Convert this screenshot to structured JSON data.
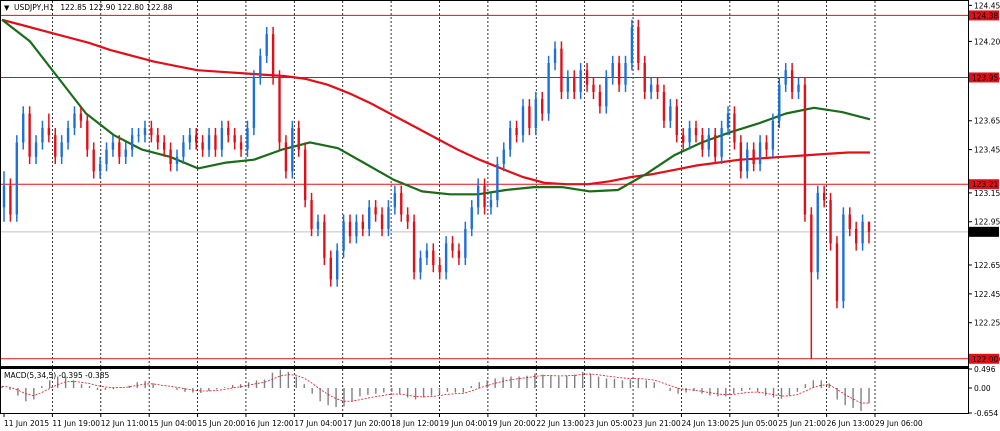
{
  "header": {
    "symbol": "USDJPY,H1",
    "ohlc": "122.85 122.90 122.80 122.88"
  },
  "macd_header": {
    "text": "MACD(5,34,5) -0.395 -0.385"
  },
  "colors": {
    "background": "#ffffff",
    "bull": "#1e6fd9",
    "bear": "#e0101a",
    "ma_red": "#e0101a",
    "ma_green": "#1a6b1a",
    "hline": "#e0101a",
    "hist": "#808080",
    "signal": "#e0101a",
    "grid": "#000000"
  },
  "price_labels": {
    "current": "122.88",
    "levels": [
      "124.38",
      "123.95",
      "123.21",
      "122.00"
    ]
  },
  "chart_data": [
    {
      "type": "candlestick",
      "title": "USDJPY,H1",
      "x_ticks": [
        "11 Jun 2015",
        "11 Jun 19:00",
        "12 Jun 11:00",
        "15 Jun 04:00",
        "15 Jun 20:00",
        "16 Jun 12:00",
        "17 Jun 04:00",
        "17 Jun 20:00",
        "18 Jun 12:00",
        "19 Jun 04:00",
        "19 Jun 20:00",
        "22 Jun 13:00",
        "23 Jun 05:00",
        "23 Jun 21:00",
        "24 Jun 13:00",
        "25 Jun 05:00",
        "25 Jun 21:00",
        "26 Jun 13:00",
        "29 Jun 06:00"
      ],
      "y_ticks": [
        "124.45",
        "124.20",
        "123.95",
        "123.65",
        "123.45",
        "123.15",
        "122.95",
        "122.65",
        "122.45",
        "122.25",
        "122.00"
      ],
      "ylim": [
        121.95,
        124.48
      ],
      "horizontal_lines": [
        124.38,
        123.95,
        123.21,
        122.0
      ],
      "current_price": 122.88,
      "ohlc": {
        "open": [
          123.05,
          123.2,
          123.0,
          123.5,
          123.7,
          123.4,
          123.5,
          123.6,
          123.55,
          123.4,
          123.5,
          123.6,
          123.7,
          123.65,
          123.45,
          123.3,
          123.35,
          123.45,
          123.5,
          123.4,
          123.45,
          123.55,
          123.55,
          123.6,
          123.55,
          123.5,
          123.45,
          123.35,
          123.4,
          123.5,
          123.55,
          123.5,
          123.45,
          123.55,
          123.45,
          123.6,
          123.55,
          123.5,
          123.45,
          123.6,
          123.95,
          124.1,
          124.25,
          123.95,
          123.5,
          123.3,
          123.6,
          123.45,
          123.1,
          122.9,
          122.95,
          122.7,
          122.55,
          122.75,
          122.95,
          122.85,
          122.95,
          122.9,
          123.05,
          123.0,
          122.9,
          123.05,
          123.15,
          123.0,
          122.95,
          122.6,
          122.7,
          122.75,
          122.65,
          122.6,
          122.8,
          122.75,
          122.7,
          122.9,
          123.05,
          123.2,
          123.05,
          123.1,
          123.35,
          123.45,
          123.6,
          123.55,
          123.75,
          123.6,
          123.8,
          123.7,
          124.05,
          124.15,
          123.85,
          123.95,
          123.85,
          124.0,
          123.9,
          123.85,
          123.75,
          123.95,
          124.05,
          123.9,
          124.05,
          124.3,
          124.05,
          123.85,
          123.9,
          123.85,
          123.65,
          123.75,
          123.55,
          123.5,
          123.6,
          123.55,
          123.45,
          123.55,
          123.4,
          123.6,
          123.7,
          123.5,
          123.3,
          123.45,
          123.35,
          123.5,
          123.45,
          123.65,
          123.9,
          124.0,
          123.85,
          123.9,
          123.0,
          122.6,
          123.15,
          123.1,
          122.8,
          122.4,
          123.0,
          122.9,
          122.8,
          122.95
        ],
        "close": [
          123.2,
          123.0,
          123.5,
          123.7,
          123.4,
          123.5,
          123.6,
          123.55,
          123.4,
          123.5,
          123.6,
          123.7,
          123.65,
          123.45,
          123.3,
          123.35,
          123.45,
          123.5,
          123.4,
          123.45,
          123.55,
          123.55,
          123.6,
          123.55,
          123.5,
          123.45,
          123.35,
          123.4,
          123.5,
          123.55,
          123.5,
          123.45,
          123.55,
          123.45,
          123.6,
          123.55,
          123.5,
          123.45,
          123.6,
          123.95,
          124.1,
          124.25,
          123.95,
          123.5,
          123.3,
          123.6,
          123.45,
          123.1,
          122.9,
          122.95,
          122.7,
          122.55,
          122.75,
          122.95,
          122.85,
          122.95,
          122.9,
          123.05,
          123.0,
          122.9,
          123.05,
          123.15,
          123.0,
          122.95,
          122.6,
          122.7,
          122.75,
          122.65,
          122.6,
          122.8,
          122.75,
          122.7,
          122.9,
          123.05,
          123.2,
          123.05,
          123.1,
          123.35,
          123.45,
          123.6,
          123.55,
          123.75,
          123.6,
          123.8,
          123.7,
          124.05,
          124.15,
          123.85,
          123.95,
          123.85,
          124.0,
          123.9,
          123.85,
          123.75,
          123.95,
          124.05,
          123.9,
          124.05,
          124.3,
          124.05,
          123.85,
          123.9,
          123.85,
          123.65,
          123.75,
          123.55,
          123.5,
          123.6,
          123.55,
          123.45,
          123.55,
          123.4,
          123.6,
          123.7,
          123.5,
          123.3,
          123.45,
          123.35,
          123.5,
          123.45,
          123.65,
          123.9,
          124.0,
          123.85,
          123.9,
          123.0,
          122.6,
          123.15,
          123.1,
          122.8,
          122.4,
          123.0,
          122.9,
          122.8,
          122.95,
          122.88
        ],
        "high": [
          123.3,
          123.25,
          123.55,
          123.75,
          123.75,
          123.55,
          123.65,
          123.7,
          123.6,
          123.55,
          123.65,
          123.75,
          123.75,
          123.7,
          123.5,
          123.4,
          123.5,
          123.55,
          123.55,
          123.5,
          123.6,
          123.6,
          123.65,
          123.65,
          123.6,
          123.55,
          123.5,
          123.45,
          123.55,
          123.6,
          123.6,
          123.55,
          123.6,
          123.6,
          123.65,
          123.65,
          123.6,
          123.55,
          123.65,
          124.0,
          124.15,
          124.3,
          124.3,
          124.0,
          123.55,
          123.65,
          123.65,
          123.5,
          123.15,
          123.0,
          123.0,
          122.75,
          122.8,
          123.0,
          123.0,
          123.0,
          123.0,
          123.1,
          123.1,
          123.05,
          123.1,
          123.2,
          123.2,
          123.05,
          123.0,
          122.75,
          122.8,
          122.8,
          122.7,
          122.85,
          122.85,
          122.8,
          122.95,
          123.1,
          123.25,
          123.25,
          123.15,
          123.4,
          123.5,
          123.65,
          123.65,
          123.8,
          123.8,
          123.85,
          123.85,
          124.1,
          124.2,
          124.2,
          124.0,
          124.0,
          124.05,
          124.05,
          123.95,
          123.9,
          124.0,
          124.1,
          124.1,
          124.1,
          124.35,
          124.35,
          124.1,
          123.95,
          123.95,
          123.9,
          123.8,
          123.8,
          123.6,
          123.65,
          123.65,
          123.6,
          123.6,
          123.6,
          123.65,
          123.75,
          123.75,
          123.55,
          123.5,
          123.5,
          123.55,
          123.55,
          123.7,
          123.95,
          124.05,
          124.05,
          123.95,
          123.95,
          123.05,
          123.2,
          123.2,
          123.15,
          122.85,
          123.05,
          123.05,
          122.95,
          123.0,
          122.95
        ],
        "low": [
          122.95,
          122.95,
          122.95,
          123.45,
          123.35,
          123.35,
          123.45,
          123.5,
          123.35,
          123.35,
          123.45,
          123.55,
          123.6,
          123.4,
          123.25,
          123.25,
          123.3,
          123.4,
          123.35,
          123.35,
          123.4,
          123.5,
          123.5,
          123.5,
          123.45,
          123.4,
          123.3,
          123.3,
          123.35,
          123.45,
          123.45,
          123.4,
          123.4,
          123.4,
          123.4,
          123.5,
          123.45,
          123.4,
          123.4,
          123.55,
          123.9,
          124.05,
          123.9,
          123.45,
          123.25,
          123.25,
          123.4,
          123.05,
          122.85,
          122.85,
          122.65,
          122.5,
          122.5,
          122.7,
          122.8,
          122.8,
          122.85,
          122.85,
          122.95,
          122.85,
          122.85,
          123.0,
          122.95,
          122.9,
          122.55,
          122.55,
          122.65,
          122.6,
          122.55,
          122.55,
          122.7,
          122.65,
          122.65,
          122.85,
          123.0,
          123.0,
          123.0,
          123.05,
          123.3,
          123.4,
          123.5,
          123.5,
          123.55,
          123.55,
          123.65,
          123.65,
          124.0,
          123.8,
          123.8,
          123.8,
          123.8,
          123.85,
          123.8,
          123.7,
          123.7,
          123.9,
          123.85,
          123.85,
          124.0,
          124.0,
          123.8,
          123.8,
          123.8,
          123.6,
          123.6,
          123.5,
          123.45,
          123.45,
          123.5,
          123.4,
          123.4,
          123.35,
          123.35,
          123.55,
          123.45,
          123.25,
          123.25,
          123.3,
          123.3,
          123.4,
          123.4,
          123.6,
          123.85,
          123.8,
          123.8,
          122.95,
          122.0,
          122.55,
          123.05,
          122.75,
          122.35,
          122.35,
          122.85,
          122.75,
          122.75,
          122.8
        ]
      },
      "ma_slow_red": [
        124.35,
        124.31,
        124.27,
        124.23,
        124.19,
        124.14,
        124.1,
        124.06,
        124.03,
        124.0,
        123.99,
        123.98,
        123.97,
        123.96,
        123.94,
        123.9,
        123.84,
        123.77,
        123.69,
        123.61,
        123.53,
        123.45,
        123.38,
        123.32,
        123.26,
        123.22,
        123.21,
        123.21,
        123.23,
        123.26,
        123.28,
        123.31,
        123.34,
        123.36,
        123.38,
        123.39,
        123.4,
        123.41,
        123.42,
        123.43,
        123.43
      ],
      "ma_fast_green": [
        124.35,
        124.2,
        123.95,
        123.7,
        123.55,
        123.45,
        123.4,
        123.32,
        123.36,
        123.38,
        123.45,
        123.5,
        123.46,
        123.35,
        123.24,
        123.16,
        123.14,
        123.14,
        123.17,
        123.19,
        123.19,
        123.16,
        123.17,
        123.28,
        123.41,
        123.5,
        123.57,
        123.63,
        123.7,
        123.74,
        123.71,
        123.66
      ],
      "macd": {
        "label": "MACD(5,34,5)",
        "values": [
          -0.395,
          -0.385
        ],
        "ylim": [
          -0.654,
          0.496
        ],
        "y_ticks": [
          "0.496",
          "0.00",
          "-0.654"
        ],
        "histogram": [
          0.05,
          -0.05,
          -0.2,
          -0.35,
          -0.3,
          0.05,
          0.2,
          0.3,
          0.3,
          0.2,
          0.1,
          0.05,
          -0.05,
          -0.05,
          -0.03,
          0.02,
          0.06,
          0.15,
          0.18,
          0.12,
          0.0,
          0.0,
          -0.05,
          -0.1,
          -0.12,
          -0.13,
          -0.08,
          -0.04,
          0.02,
          0.08,
          0.1,
          0.15,
          0.2,
          0.22,
          0.4,
          0.48,
          0.42,
          0.3,
          0.1,
          -0.15,
          -0.35,
          -0.45,
          -0.5,
          -0.48,
          -0.35,
          -0.22,
          -0.18,
          -0.15,
          -0.12,
          -0.1,
          -0.15,
          -0.25,
          -0.3,
          -0.25,
          -0.2,
          -0.15,
          -0.1,
          -0.12,
          -0.12,
          0.05,
          0.15,
          0.2,
          0.25,
          0.28,
          0.3,
          0.3,
          0.32,
          0.38,
          0.35,
          0.33,
          0.3,
          0.32,
          0.35,
          0.42,
          0.38,
          0.3,
          0.25,
          0.24,
          0.2,
          0.22,
          0.25,
          0.2,
          0.15,
          0.0,
          -0.08,
          -0.15,
          -0.12,
          -0.08,
          -0.15,
          -0.2,
          -0.22,
          -0.22,
          -0.15,
          -0.08,
          -0.05,
          -0.1,
          -0.2,
          -0.25,
          -0.28,
          -0.2,
          -0.1,
          0.1,
          0.2,
          0.2,
          0.12,
          -0.3,
          -0.45,
          -0.52,
          -0.6,
          -0.4
        ]
      }
    }
  ]
}
